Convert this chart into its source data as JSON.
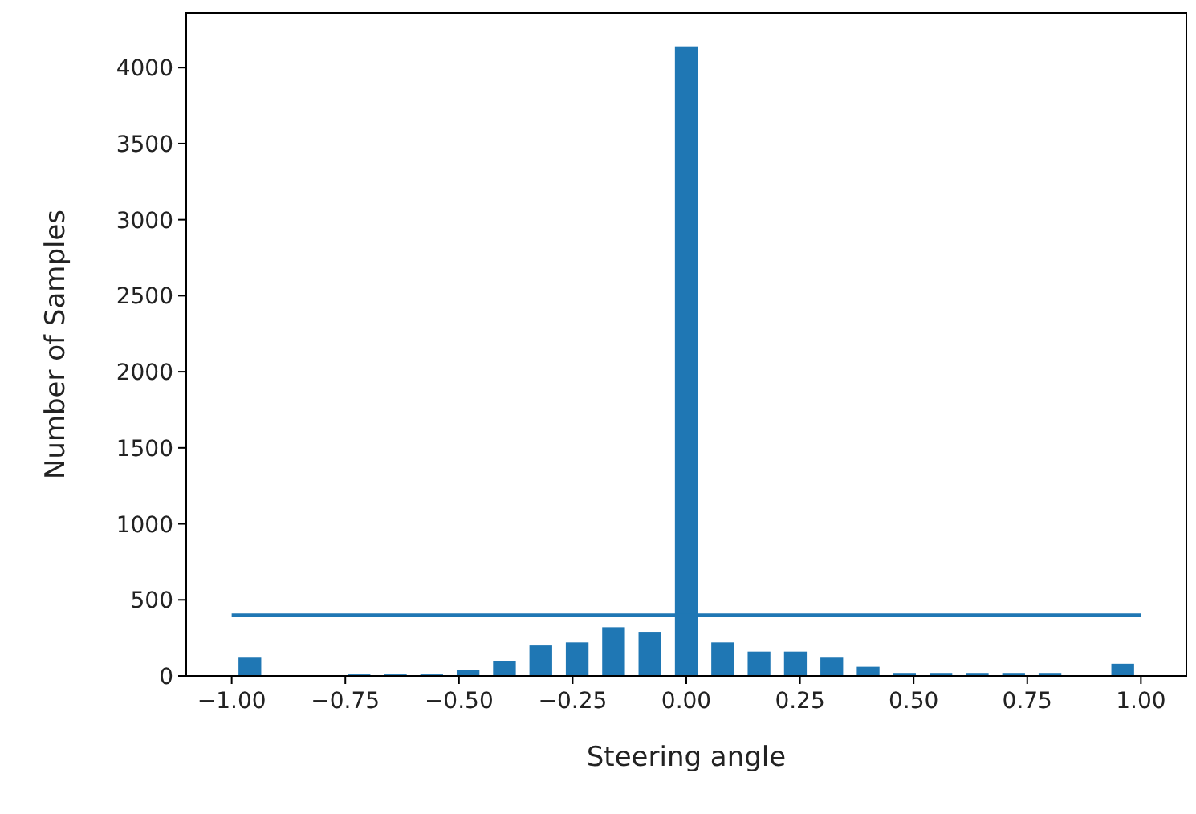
{
  "chart_data": {
    "type": "bar",
    "xlabel": "Steering angle",
    "ylabel": "Number of Samples",
    "xlim": [
      -1.1,
      1.1
    ],
    "ylim": [
      0,
      4360
    ],
    "xticks": [
      {
        "value": -1,
        "label": "−1.00"
      },
      {
        "value": -0.75,
        "label": "−0.75"
      },
      {
        "value": -0.5,
        "label": "−0.50"
      },
      {
        "value": -0.25,
        "label": "−0.25"
      },
      {
        "value": 0,
        "label": "0.00"
      },
      {
        "value": 0.25,
        "label": "0.25"
      },
      {
        "value": 0.5,
        "label": "0.50"
      },
      {
        "value": 0.75,
        "label": "0.75"
      },
      {
        "value": 1,
        "label": "1.00"
      }
    ],
    "yticks": [
      0,
      500,
      1000,
      1500,
      2000,
      2500,
      3000,
      3500,
      4000
    ],
    "grid": false,
    "series": [
      {
        "color": "#1f77b4",
        "x": [
          -0.96,
          -0.88,
          -0.8,
          -0.72,
          -0.64,
          -0.56,
          -0.48,
          -0.4,
          -0.32,
          -0.24,
          -0.16,
          -0.08,
          0,
          0.08,
          0.16,
          0.24,
          0.32,
          0.4,
          0.48,
          0.56,
          0.64,
          0.72,
          0.8,
          0.88,
          0.96
        ],
        "values": [
          120,
          0,
          0,
          10,
          10,
          10,
          40,
          100,
          200,
          220,
          320,
          290,
          4140,
          220,
          160,
          160,
          120,
          60,
          20,
          20,
          20,
          20,
          20,
          0,
          80
        ]
      },
      {
        "type": "line",
        "color": "#1f77b4",
        "x": [
          -1,
          1
        ],
        "values": [
          400,
          400
        ]
      }
    ]
  }
}
